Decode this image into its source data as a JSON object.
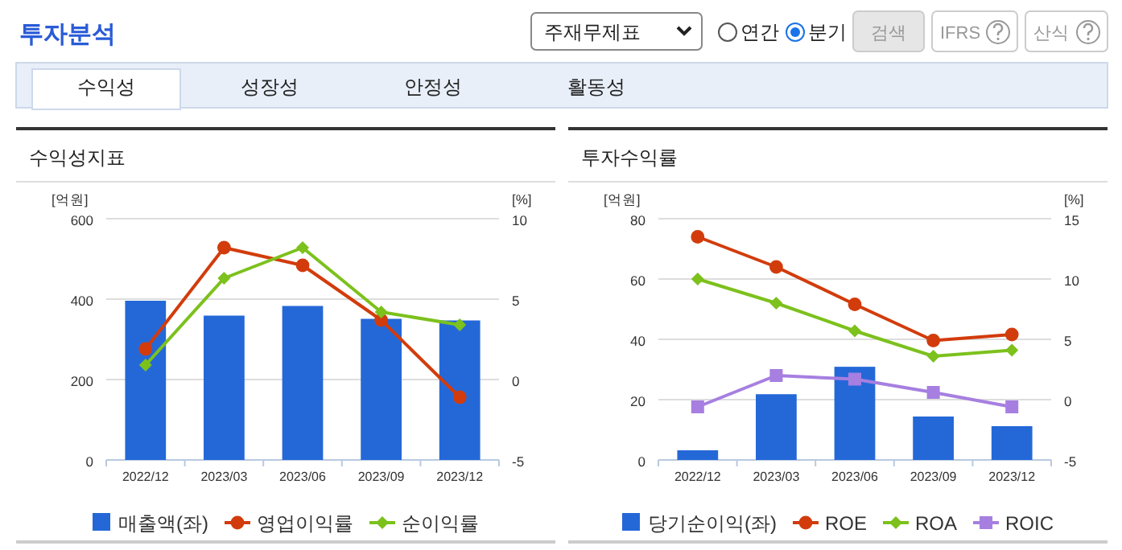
{
  "chart_data": [
    {
      "type": "other",
      "title": "투자분석",
      "annotations": [
        "주재무제표",
        "연간",
        "분기",
        "검색",
        "IFRS",
        "산식",
        "수익성",
        "성장성",
        "안정성",
        "활동성"
      ]
    },
    {
      "type": "bar",
      "title": "수익성지표",
      "ylabel": "[억원]",
      "y2label": "[%]",
      "categories": [
        "2022/12",
        "2023/03",
        "2023/06",
        "2023/09",
        "2023/12"
      ],
      "ylim": [
        0,
        600
      ],
      "yticks": [
        0,
        200,
        400,
        600
      ],
      "y2lim": [
        -5,
        10
      ],
      "y2ticks": [
        -5,
        0,
        5,
        10
      ],
      "grid": "y",
      "legend": "bottom",
      "series": [
        {
          "name": "매출액(좌)",
          "type": "bar",
          "color": "#2468d8",
          "values": [
            396,
            359,
            383,
            351,
            347
          ]
        },
        {
          "name": "영업이익률",
          "type": "line",
          "axis": "y2",
          "marker": "circle",
          "color": "#d23c0c",
          "values": [
            1.9,
            8.2,
            7.1,
            3.7,
            -1.1
          ]
        },
        {
          "name": "순이익률",
          "type": "line",
          "axis": "y2",
          "marker": "diamond",
          "color": "#7cc11c",
          "values": [
            0.9,
            6.3,
            8.2,
            4.2,
            3.4
          ]
        }
      ]
    },
    {
      "type": "bar",
      "title": "투자수익률",
      "ylabel": "[억원]",
      "y2label": "[%]",
      "categories": [
        "2022/12",
        "2023/03",
        "2023/06",
        "2023/09",
        "2023/12"
      ],
      "ylim": [
        0,
        80
      ],
      "yticks": [
        0,
        20,
        40,
        60,
        80
      ],
      "y2lim": [
        -5,
        15
      ],
      "y2ticks": [
        -5,
        0,
        5,
        10,
        15
      ],
      "grid": "y",
      "legend": "bottom",
      "series": [
        {
          "name": "당기순이익(좌)",
          "type": "bar",
          "color": "#2468d8",
          "values": [
            3.2,
            21.8,
            30.9,
            14.4,
            11.2
          ]
        },
        {
          "name": "ROE",
          "type": "line",
          "axis": "y2",
          "marker": "circle",
          "color": "#d23c0c",
          "values": [
            13.5,
            11.0,
            7.9,
            4.9,
            5.4
          ]
        },
        {
          "name": "ROA",
          "type": "line",
          "axis": "y2",
          "marker": "diamond",
          "color": "#7cc11c",
          "values": [
            10.0,
            8.0,
            5.7,
            3.6,
            4.1
          ]
        },
        {
          "name": "ROIC",
          "type": "line",
          "axis": "y2",
          "marker": "square",
          "color": "#a67fe0",
          "values": [
            -0.6,
            2.0,
            1.7,
            0.6,
            -0.6
          ]
        }
      ]
    }
  ]
}
